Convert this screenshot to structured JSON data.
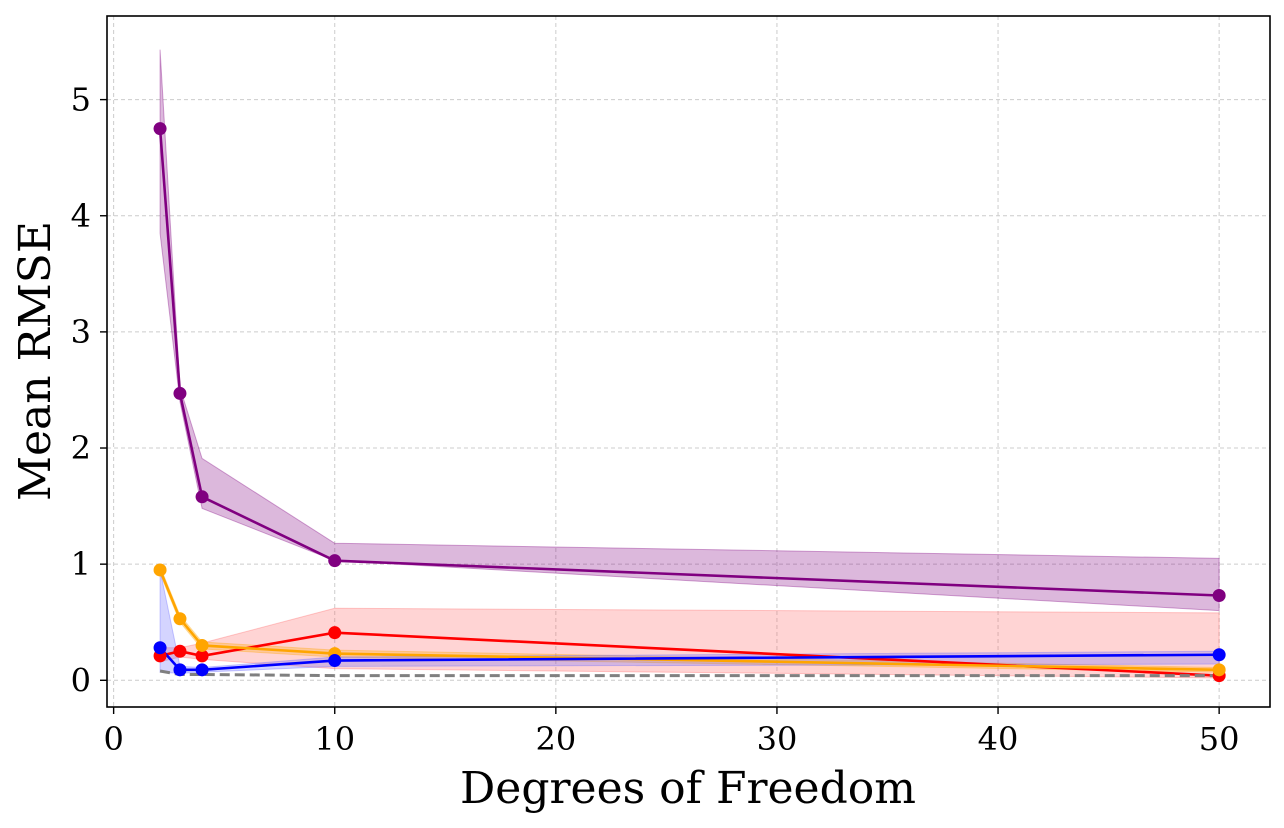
{
  "chart_data": {
    "type": "line",
    "title": "",
    "xlabel": "Degrees of Freedom",
    "ylabel": "Mean RMSE",
    "xlim": [
      -0.3,
      52.3
    ],
    "ylim": [
      -0.23,
      5.72
    ],
    "xticks": [
      0,
      10,
      20,
      30,
      40,
      50
    ],
    "yticks": [
      0,
      1,
      2,
      3,
      4,
      5
    ],
    "grid": true,
    "legend": "none",
    "x": [
      2.1,
      3,
      4,
      10,
      50
    ],
    "series": [
      {
        "color": "#800080",
        "marker": "circle",
        "values": [
          4.75,
          2.47,
          1.58,
          1.03,
          0.73
        ],
        "band_upper": [
          5.43,
          2.52,
          1.91,
          1.18,
          1.05
        ],
        "band_lower": [
          3.85,
          2.4,
          1.48,
          1.03,
          0.6
        ],
        "band_color": "#800080"
      },
      {
        "color": "#ff0000",
        "marker": "circle",
        "values": [
          0.21,
          0.25,
          0.21,
          0.41,
          0.04
        ],
        "band_upper": [
          0.28,
          0.28,
          0.32,
          0.62,
          0.58
        ],
        "band_lower": [
          0.16,
          0.2,
          0.18,
          0.1,
          0.02
        ],
        "band_color": "#ff6666"
      },
      {
        "color": "#ffa500",
        "marker": "circle",
        "values": [
          0.95,
          0.53,
          0.3,
          0.23,
          0.09
        ],
        "band_upper": [
          0.98,
          0.56,
          0.33,
          0.26,
          0.11
        ],
        "band_lower": [
          0.92,
          0.5,
          0.27,
          0.2,
          0.07
        ],
        "band_color": "#ffa500"
      },
      {
        "color": "#0000ff",
        "marker": "circle",
        "values": [
          0.28,
          0.09,
          0.09,
          0.17,
          0.22
        ],
        "band_upper": [
          0.95,
          0.12,
          0.11,
          0.2,
          0.25
        ],
        "band_lower": [
          0.07,
          0.06,
          0.07,
          0.12,
          0.14
        ],
        "band_color": "#6666ff"
      },
      {
        "color": "#808080",
        "marker": "none",
        "dashed": true,
        "values": [
          0.08,
          0.05,
          0.05,
          0.04,
          0.04
        ]
      }
    ]
  }
}
